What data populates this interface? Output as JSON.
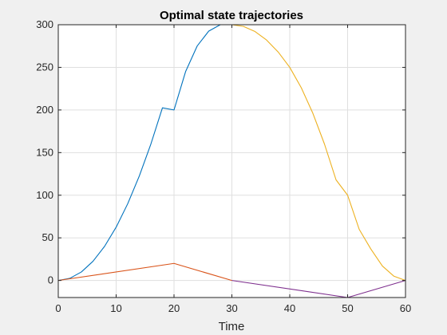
{
  "chart_data": {
    "type": "line",
    "title": "Optimal state trajectories",
    "xlabel": "Time",
    "ylabel": "",
    "xlim": [
      0,
      60
    ],
    "ylim": [
      -20,
      300
    ],
    "xticks": [
      0,
      10,
      20,
      30,
      40,
      50,
      60
    ],
    "yticks": [
      0,
      50,
      100,
      150,
      200,
      250,
      300
    ],
    "grid": true,
    "legend": "none",
    "series": [
      {
        "color": "#0072BD",
        "x": [
          0,
          2,
          4,
          6,
          8,
          10,
          12,
          14,
          16,
          18,
          20,
          22,
          24,
          26,
          28,
          30
        ],
        "y": [
          0,
          2.5,
          10,
          22.5,
          40,
          62.5,
          90,
          122.5,
          160,
          202.5,
          200,
          245,
          275,
          292.5,
          300,
          300
        ]
      },
      {
        "color": "#D95319",
        "x": [
          0,
          20,
          30
        ],
        "y": [
          0,
          20,
          0
        ]
      },
      {
        "color": "#EDB120",
        "x": [
          30,
          32,
          34,
          36,
          38,
          40,
          42,
          44,
          46,
          48,
          50,
          52,
          54,
          56,
          58,
          60
        ],
        "y": [
          300,
          298,
          292,
          282,
          268,
          250,
          226,
          196,
          160,
          118,
          100,
          60,
          37,
          17,
          5,
          0
        ]
      },
      {
        "color": "#7E2F8E",
        "x": [
          30,
          50,
          60
        ],
        "y": [
          0,
          -20,
          0
        ]
      }
    ]
  }
}
